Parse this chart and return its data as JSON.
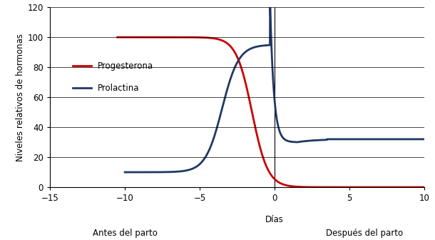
{
  "title": "",
  "xlabel": "Días",
  "ylabel": "Niveles relativos de hormonas",
  "xlabel_before": "Antes del parto",
  "xlabel_after": "Después del parto",
  "xlim": [
    -15,
    10
  ],
  "ylim": [
    0,
    120
  ],
  "xticks": [
    -15,
    -10,
    -5,
    0,
    5,
    10
  ],
  "yticks": [
    0,
    20,
    40,
    60,
    80,
    100,
    120
  ],
  "progesterona_color": "#cc0000",
  "prolactina_color": "#1f3864",
  "line_width": 2.0,
  "background_color": "#ffffff",
  "grid_color": "#000000",
  "legend_progesterona": "Progesterona",
  "legend_prolactina": "Prolactina"
}
